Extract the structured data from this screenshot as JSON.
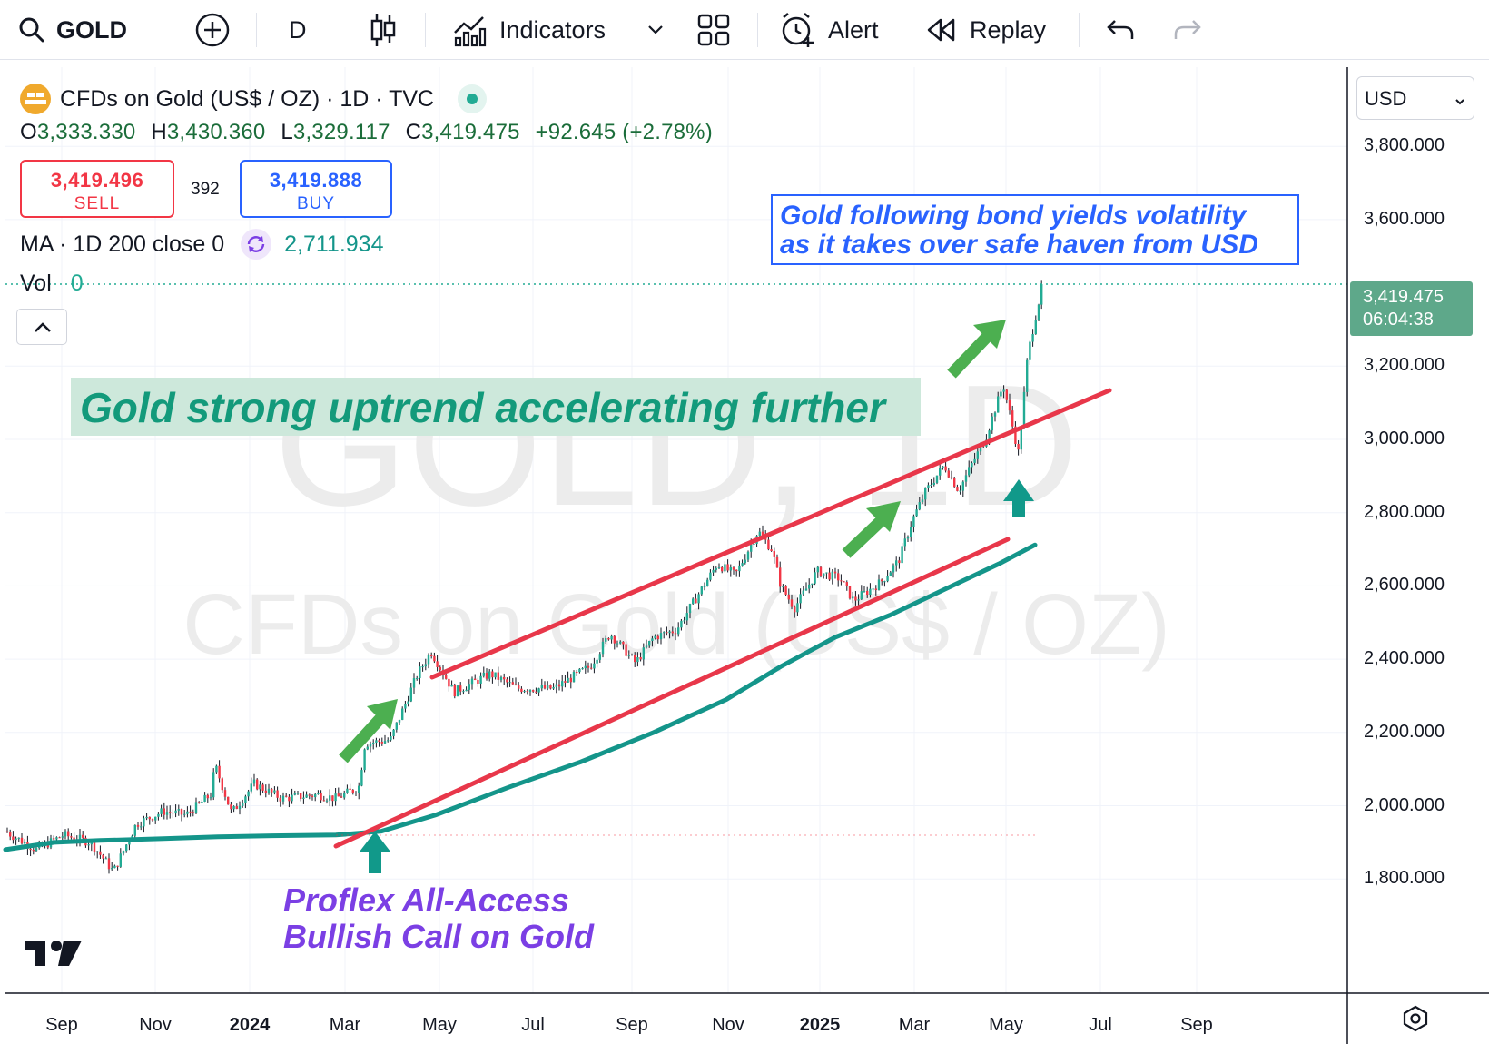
{
  "toolbar": {
    "symbol": "GOLD",
    "interval": "D",
    "indicators_label": "Indicators",
    "alert_label": "Alert",
    "replay_label": "Replay"
  },
  "legend": {
    "title": "CFDs on Gold (US$ / OZ) · 1D · TVC",
    "ohlc": {
      "o_key": "O",
      "o": "3,333.330",
      "h_key": "H",
      "h": "3,430.360",
      "l_key": "L",
      "l": "3,329.117",
      "c_key": "C",
      "c": "3,419.475",
      "change": "+92.645 (+2.78%)"
    },
    "sell_price": "3,419.496",
    "sell_label": "SELL",
    "spread": "392",
    "buy_price": "3,419.888",
    "buy_label": "BUY",
    "ma_label": "MA · 1D 200 close 0",
    "ma_value": "2,711.934",
    "vol_label": "Vol",
    "vol_value": "0"
  },
  "watermark": {
    "symbol": "GOLD, 1D",
    "name": "CFDs on Gold (US$ / OZ)"
  },
  "price_axis": {
    "currency": "USD",
    "labels": [
      "3,800.000",
      "3,600.000",
      "3,200.000",
      "3,000.000",
      "2,800.000",
      "2,600.000",
      "2,400.000",
      "2,200.000",
      "2,000.000",
      "1,800.000"
    ],
    "last_price": "3,419.475",
    "countdown": "06:04:38"
  },
  "time_axis": {
    "labels": [
      "Sep",
      "Nov",
      "2024",
      "Mar",
      "May",
      "Jul",
      "Sep",
      "Nov",
      "2025",
      "Mar",
      "May",
      "Jul",
      "Sep"
    ]
  },
  "annotations": {
    "headline": "Gold strong uptrend accelerating further",
    "bond_line1": "Gold following bond yields volatility",
    "bond_line2": "as it takes over safe haven from USD",
    "proflex_line1": "Proflex All-Access",
    "proflex_line2": "Bullish Call on Gold"
  },
  "colors": {
    "up": "#22ab94",
    "down": "#f23645",
    "channel": "#e8374a",
    "ma": "#14958a",
    "arrow": "#4caf50",
    "teal_arrow": "#11998a",
    "headline": "#139a7b",
    "blue_text": "#2962ff",
    "purple_text": "#7b3fe4"
  },
  "chart_data": {
    "type": "candlestick",
    "symbol": "GOLD",
    "interval": "1D",
    "ylim": [
      1700,
      3900
    ],
    "x": [
      "2023-09",
      "2023-11",
      "2024-01",
      "2024-03",
      "2024-05",
      "2024-07",
      "2024-09",
      "2024-11",
      "2025-01",
      "2025-03",
      "2025-04"
    ],
    "close": [
      1920,
      1990,
      2060,
      2160,
      2340,
      2430,
      2620,
      2660,
      2780,
      3080,
      3419.475
    ],
    "ma200": [
      1920,
      1950,
      1960,
      1985,
      2100,
      2230,
      2380,
      2500,
      2590,
      2660,
      2711.934
    ]
  }
}
